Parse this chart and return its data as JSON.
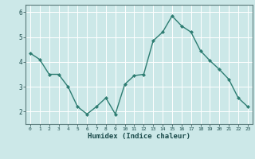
{
  "x": [
    0,
    1,
    2,
    3,
    4,
    5,
    6,
    7,
    8,
    9,
    10,
    11,
    12,
    13,
    14,
    15,
    16,
    17,
    18,
    19,
    20,
    21,
    22,
    23
  ],
  "y": [
    4.35,
    4.1,
    3.5,
    3.5,
    3.0,
    2.2,
    1.9,
    2.2,
    2.55,
    1.9,
    3.1,
    3.45,
    3.5,
    4.85,
    5.2,
    5.85,
    5.45,
    5.2,
    4.45,
    4.05,
    3.7,
    3.3,
    2.55,
    2.2
  ],
  "xlabel": "Humidex (Indice chaleur)",
  "ylim": [
    1.5,
    6.3
  ],
  "xlim": [
    -0.5,
    23.5
  ],
  "yticks": [
    2,
    3,
    4,
    5,
    6
  ],
  "xticks": [
    0,
    1,
    2,
    3,
    4,
    5,
    6,
    7,
    8,
    9,
    10,
    11,
    12,
    13,
    14,
    15,
    16,
    17,
    18,
    19,
    20,
    21,
    22,
    23
  ],
  "line_color": "#2e7d72",
  "bg_color": "#cce8e8",
  "grid_color": "#ffffff",
  "axis_color": "#5a7a7a",
  "tick_color": "#1a4a4a",
  "label_color": "#1a4a4a"
}
